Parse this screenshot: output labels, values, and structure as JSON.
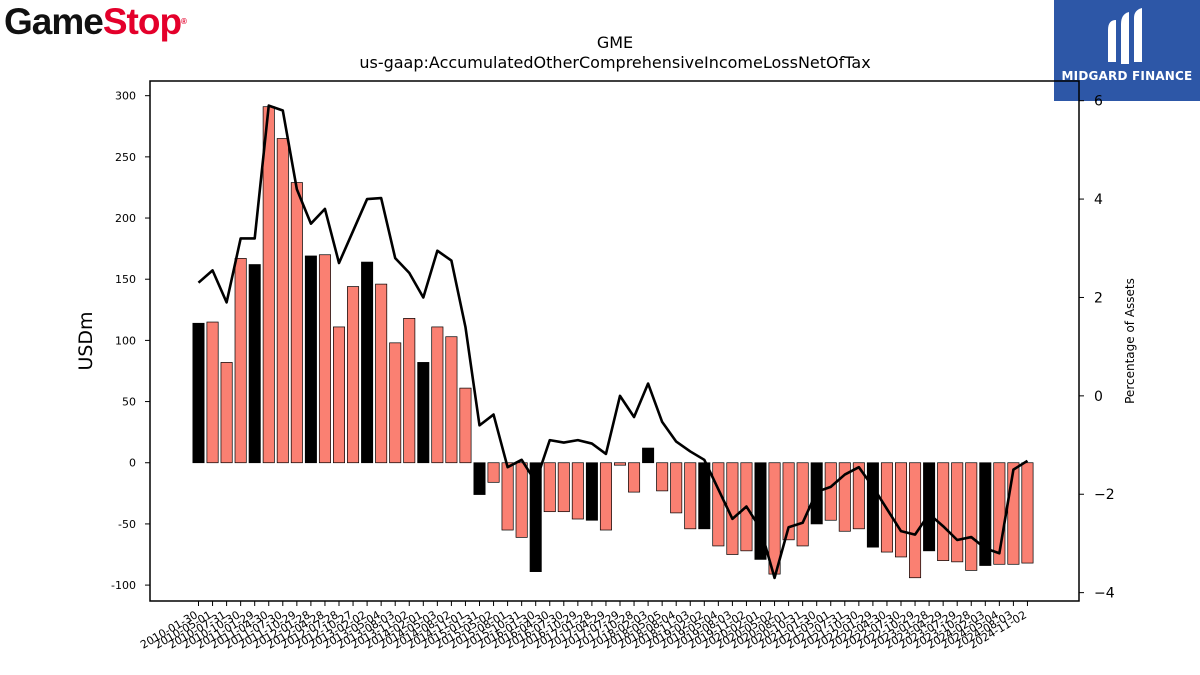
{
  "brand": {
    "left_logo_part1": "Game",
    "left_logo_part2": "Stop",
    "left_logo_mark": "®",
    "right_logo_text": "MIDGARD FINANCE",
    "right_logo_bg": "#2d57a7",
    "brand_red": "#e4002b"
  },
  "chart_data": {
    "type": "bar",
    "title": "GME",
    "subtitle": "us-gaap:AccumulatedOtherComprehensiveIncomeLossNetOfTax",
    "ylabel": "USDm",
    "y2label": "Percentage of Assets",
    "ylim": [
      -113,
      312
    ],
    "y2lim": [
      -4.17,
      6.4
    ],
    "yticks": [
      -100,
      -50,
      0,
      50,
      100,
      150,
      200,
      250,
      300
    ],
    "y2ticks": [
      -4,
      -2,
      0,
      2,
      4,
      6
    ],
    "colors": {
      "bar_default": "#fa8072",
      "bar_highlight": "#000000",
      "line": "#000000"
    },
    "categories": [
      "2010-01-30",
      "2010-05-01",
      "2010-07-31",
      "2010-10-30",
      "2011-01-29",
      "2011-04-30",
      "2011-07-30",
      "2011-10-29",
      "2012-01-28",
      "2012-04-28",
      "2012-07-28",
      "2012-10-27",
      "2013-02-02",
      "2013-05-04",
      "2013-08-03",
      "2013-11-02",
      "2014-02-01",
      "2014-05-03",
      "2014-08-02",
      "2014-11-01",
      "2015-01-31",
      "2015-05-02",
      "2015-08-01",
      "2015-10-31",
      "2016-01-30",
      "2016-04-30",
      "2016-07-30",
      "2016-10-29",
      "2017-01-28",
      "2017-04-29",
      "2017-07-29",
      "2017-10-28",
      "2018-02-03",
      "2018-05-05",
      "2018-08-04",
      "2018-11-03",
      "2019-02-02",
      "2019-05-04",
      "2019-08-03",
      "2019-11-02",
      "2020-02-01",
      "2020-05-02",
      "2020-08-01",
      "2020-10-31",
      "2021-01-30",
      "2021-05-01",
      "2021-07-31",
      "2021-10-30",
      "2022-01-29",
      "2022-04-30",
      "2022-07-30",
      "2022-10-29",
      "2023-01-28",
      "2023-04-29",
      "2023-07-29",
      "2023-10-28",
      "2024-02-03",
      "2024-05-04",
      "2024-08-03",
      "2024-11-02"
    ],
    "xtick_labels": [
      "2010-01-30",
      "2010-05-01",
      "2010-07-31",
      "2010-10-30",
      "2011-01-29",
      "2011-04-30",
      "2011-07-30",
      "2011-10-29",
      "2012-01-28",
      "2012-04-28",
      "2012-07-28",
      "2012-10-27",
      "2013-02-02",
      "2013-05-04",
      "2013-08-03",
      "2013-11-02",
      "2014-02-01",
      "2014-05-03",
      "2014-08-02",
      "2014-11-01",
      "2015-01-31",
      "2015-05-02",
      "2015-08-01",
      "2015-10-31",
      "2016-01-30",
      "2016-04-30",
      "2016-07-30",
      "2016-10-29",
      "2017-01-28",
      "2017-04-29",
      "2017-07-29",
      "2017-10-28",
      "2018-02-03",
      "2018-05-05",
      "2018-08-04",
      "2018-11-03",
      "2019-02-02",
      "2019-05-04",
      "2019-08-03",
      "2019-11-02",
      "2020-02-01",
      "2020-05-02",
      "2020-08-01",
      "2020-10-31",
      "2021-01-30",
      "2021-05-01",
      "2021-07-31",
      "2021-10-30",
      "2022-01-29",
      "2022-04-30",
      "2022-07-30",
      "2022-10-29",
      "2023-01-28",
      "2023-04-29",
      "2023-07-29",
      "2023-10-28",
      "2024-02-03",
      "2024-05-04",
      "2024-08-03",
      "2024-11-02"
    ],
    "highlight": [
      true,
      false,
      false,
      false,
      true,
      false,
      false,
      false,
      true,
      false,
      false,
      false,
      true,
      false,
      false,
      false,
      true,
      false,
      false,
      false,
      true,
      false,
      false,
      false,
      true,
      false,
      false,
      false,
      true,
      false,
      false,
      false,
      true,
      false,
      false,
      false,
      true,
      false,
      false,
      false,
      true,
      false,
      false,
      false,
      true,
      false,
      false,
      false,
      true,
      false,
      false,
      false,
      true,
      false,
      false,
      false,
      true,
      false,
      false,
      false
    ],
    "series": [
      {
        "name": "USDm",
        "axis": "left",
        "values": [
          114,
          115,
          82,
          167,
          162,
          291,
          265,
          229,
          169,
          170,
          111,
          144,
          164,
          146,
          98,
          118,
          82,
          111,
          103,
          61,
          -26,
          -16,
          -55,
          -61,
          -89,
          -40,
          -40,
          -46,
          -47,
          -55,
          -2,
          -24,
          12,
          -23,
          -41,
          -54,
          -54,
          -68,
          -75,
          -72,
          -79,
          -91,
          -63,
          -68,
          -50,
          -47,
          -56,
          -54,
          -69,
          -73,
          -77,
          -94,
          -72,
          -80,
          -81,
          -88,
          -84,
          -83,
          -83,
          -82
        ]
      },
      {
        "name": "Percentage of Assets",
        "axis": "right",
        "values": [
          2.3,
          2.55,
          1.9,
          3.2,
          3.2,
          5.9,
          5.8,
          4.2,
          3.5,
          3.8,
          2.7,
          3.35,
          4.0,
          4.02,
          2.8,
          2.5,
          2.0,
          2.95,
          2.75,
          1.4,
          -0.6,
          -0.38,
          -1.45,
          -1.3,
          -1.75,
          -0.9,
          -0.95,
          -0.9,
          -0.97,
          -1.18,
          0.0,
          -0.43,
          0.25,
          -0.53,
          -0.93,
          -1.13,
          -1.3,
          -1.9,
          -2.5,
          -2.25,
          -2.7,
          -3.7,
          -2.67,
          -2.58,
          -1.95,
          -1.85,
          -1.6,
          -1.45,
          -1.85,
          -2.3,
          -2.75,
          -2.82,
          -2.4,
          -2.65,
          -2.93,
          -2.87,
          -3.1,
          -3.2,
          -1.5,
          -1.32
        ]
      }
    ]
  }
}
